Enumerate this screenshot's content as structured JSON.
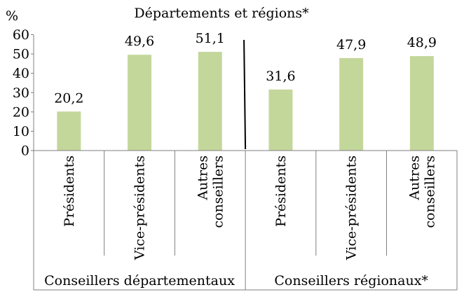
{
  "chart_data": {
    "type": "bar",
    "title": "Départements et régions*",
    "ylabel": "%",
    "ylim": [
      0,
      60
    ],
    "yticks": [
      0,
      10,
      20,
      30,
      40,
      50,
      60
    ],
    "grid": false,
    "legend": "none",
    "bar_color": "#c4d79b",
    "groups": [
      {
        "label": "Conseillers départementaux",
        "bars": [
          {
            "label": "Présidents",
            "value": 20.2,
            "value_label": "20,2"
          },
          {
            "label": "Vice-présidents",
            "value": 49.6,
            "value_label": "49,6"
          },
          {
            "label": "Autres conseillers",
            "label_lines": [
              "Autres",
              "conseillers"
            ],
            "value": 51.1,
            "value_label": "51,1"
          }
        ]
      },
      {
        "label": "Conseillers régionaux*",
        "bars": [
          {
            "label": "Présidents",
            "value": 31.6,
            "value_label": "31,6"
          },
          {
            "label": "Vice-présidents",
            "value": 47.9,
            "value_label": "47,9"
          },
          {
            "label": "Autres conseillers",
            "label_lines": [
              "Autres",
              "conseillers"
            ],
            "value": 48.9,
            "value_label": "48,9"
          }
        ]
      }
    ]
  }
}
